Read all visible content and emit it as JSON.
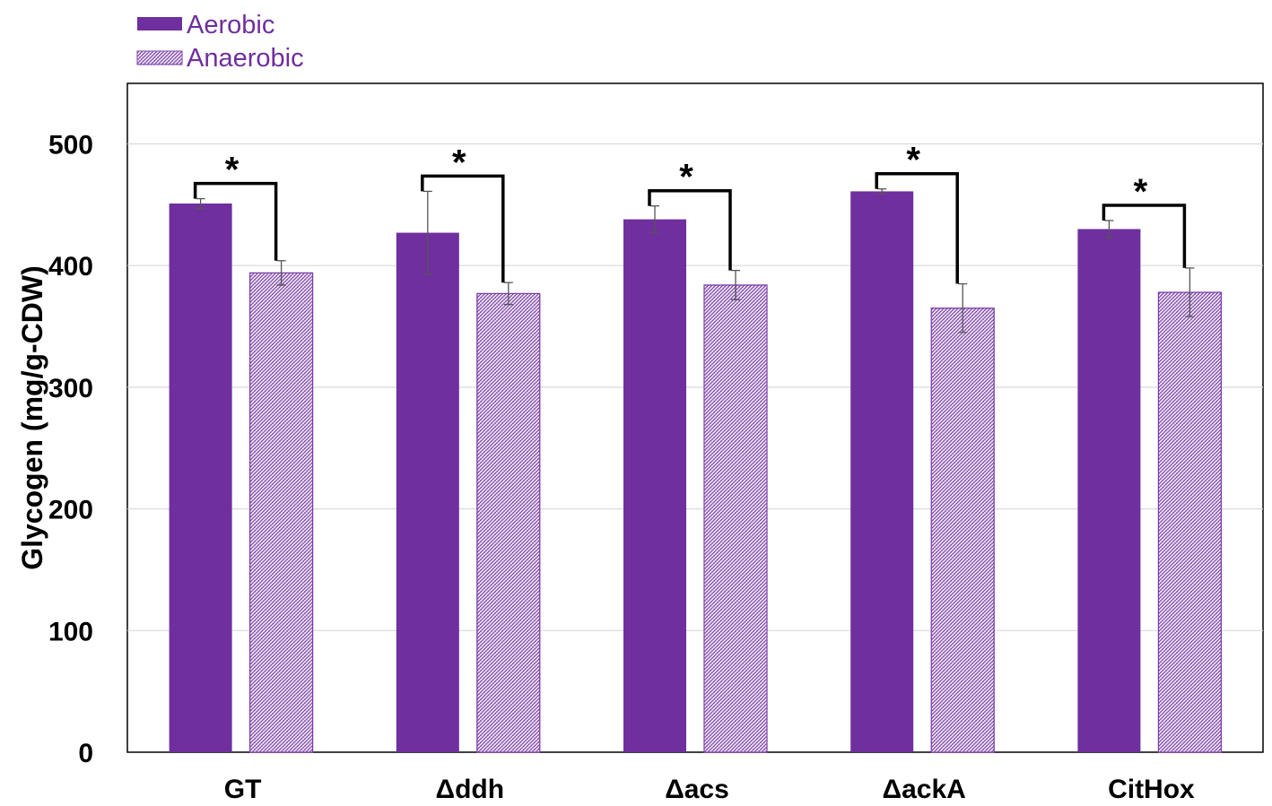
{
  "chart_data": {
    "type": "bar",
    "title": "",
    "xlabel": "",
    "ylabel": "Glycogen (mg/g-CDW)",
    "ylim": [
      0,
      550
    ],
    "yticks": [
      0,
      100,
      200,
      300,
      400,
      500
    ],
    "grid": true,
    "legend_position": "top-left",
    "categories": [
      "GT",
      "Δddh",
      "Δacs",
      "ΔackA",
      "CitHox"
    ],
    "series": [
      {
        "name": "Aerobic",
        "pattern": "solid",
        "color": "#6f2f9f",
        "values": [
          451,
          427,
          438,
          461,
          430
        ],
        "errors": [
          4,
          34,
          11,
          2,
          7
        ]
      },
      {
        "name": "Anaerobic",
        "pattern": "hatched",
        "color": "#7a3aa8",
        "values": [
          394,
          377,
          384,
          365,
          378
        ],
        "errors": [
          10,
          9,
          12,
          20,
          20
        ]
      }
    ],
    "significance": [
      {
        "category": "GT",
        "marker": "*"
      },
      {
        "category": "Δddh",
        "marker": "*"
      },
      {
        "category": "Δacs",
        "marker": "*"
      },
      {
        "category": "ΔackA",
        "marker": "*"
      },
      {
        "category": "CitHox",
        "marker": "*"
      }
    ]
  }
}
